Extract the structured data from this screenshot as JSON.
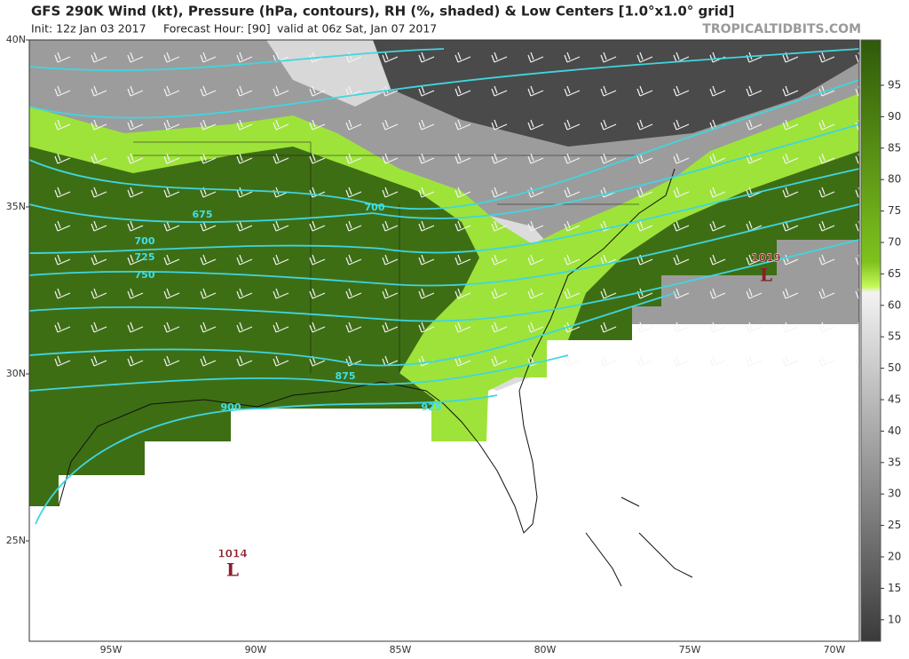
{
  "header": {
    "title": "GFS 290K Wind (kt), Pressure (hPa, contours), RH (%, shaded) & Low Centers [1.0°x1.0° grid]",
    "init": "Init: 12z Jan 03 2017",
    "forecast_hour": "Forecast Hour: [90]",
    "valid": "valid at 06z Sat, Jan 07 2017",
    "credit": "TROPICALTIDBITS.COM"
  },
  "latitude_labels": [
    "40N",
    "35N",
    "30N",
    "25N"
  ],
  "longitude_labels": [
    "95W",
    "90W",
    "85W",
    "80W",
    "75W",
    "70W"
  ],
  "colorbar": {
    "ticks": [
      95,
      90,
      85,
      80,
      75,
      70,
      65,
      60,
      55,
      50,
      45,
      40,
      35,
      30,
      25,
      20,
      15,
      10
    ]
  },
  "contour_labels": [
    "675",
    "700",
    "700",
    "725",
    "750",
    "875",
    "900",
    "925"
  ],
  "lows": [
    {
      "pressure": "1019",
      "symbol": "L"
    },
    {
      "pressure": "1014",
      "symbol": "L"
    }
  ]
}
